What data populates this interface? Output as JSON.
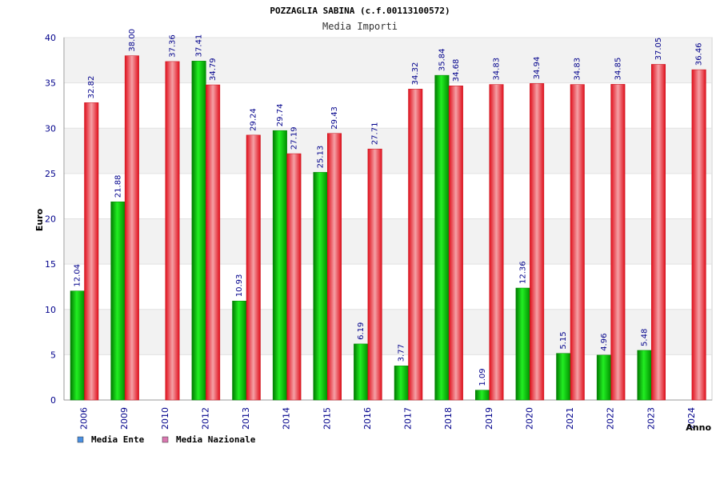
{
  "chart_data": {
    "type": "bar",
    "title": "POZZAGLIA SABINA (c.f.00113100572)",
    "subtitle": "Media Importi",
    "xlabel": "Anno",
    "ylabel": "Euro",
    "ylim": [
      0,
      40
    ],
    "yticks": [
      0,
      5,
      10,
      15,
      20,
      25,
      30,
      35,
      40
    ],
    "grid": true,
    "legend_position": "bottom-left",
    "categories": [
      "2006",
      "2009",
      "2010",
      "2012",
      "2013",
      "2014",
      "2015",
      "2016",
      "2017",
      "2018",
      "2019",
      "2020",
      "2021",
      "2022",
      "2023",
      "2024"
    ],
    "series": [
      {
        "name": "Media Ente",
        "legend_color": "#4a90e2",
        "color": "#00c000",
        "values": [
          12.04,
          21.88,
          null,
          37.41,
          10.93,
          29.74,
          25.13,
          6.19,
          3.77,
          35.84,
          1.09,
          12.36,
          5.15,
          4.96,
          5.48,
          null
        ],
        "labels": [
          "12.04",
          "21.88",
          null,
          "37.41",
          "10.93",
          "29.74",
          "25.13",
          "6.19",
          "3.77",
          "35.84",
          "1.09",
          "12.36",
          "5.15",
          "4.96",
          "5.48",
          null
        ]
      },
      {
        "name": "Media Nazionale",
        "legend_color": "#d977b0",
        "color": "#e8202a",
        "values": [
          32.82,
          38.0,
          37.36,
          34.79,
          29.24,
          27.19,
          29.43,
          27.71,
          34.32,
          34.68,
          34.83,
          34.94,
          34.83,
          34.85,
          37.05,
          36.46
        ],
        "labels": [
          "32.82",
          "38.00",
          "37.36",
          "34.79",
          "29.24",
          "27.19",
          "29.43",
          "27.71",
          "34.32",
          "34.68",
          "34.83",
          "34.94",
          "34.83",
          "34.85",
          "37.05",
          "36.46"
        ]
      }
    ]
  }
}
